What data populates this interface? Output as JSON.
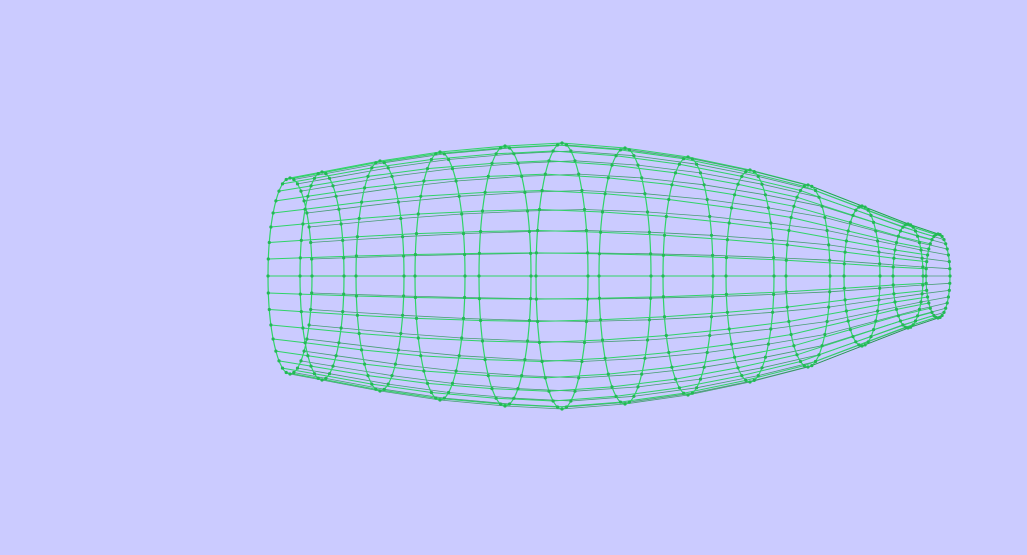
{
  "scene": {
    "background_color": "#cbcbff",
    "wire_color": "#2fd467",
    "wire_dark_color": "#1b8f45",
    "node_color": "#23b955",
    "model": "bottle-wireframe-mesh",
    "rings": 12,
    "meridians": 36
  }
}
